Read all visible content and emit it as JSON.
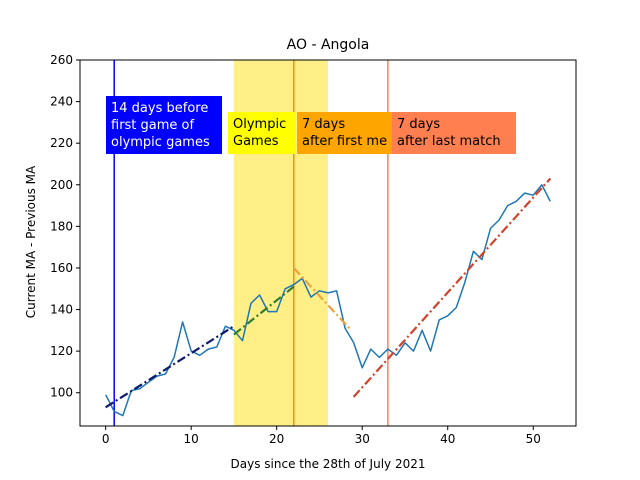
{
  "chart_data": {
    "type": "line",
    "title": "AO - Angola",
    "xlabel": "Days since the 28th of July 2021",
    "ylabel": "Current MA - Previous MA",
    "xlim": [
      -3,
      55
    ],
    "ylim": [
      84,
      260
    ],
    "xticks": [
      0,
      10,
      20,
      30,
      40,
      50
    ],
    "yticks": [
      100,
      120,
      140,
      160,
      180,
      200,
      220,
      240,
      260
    ],
    "grid": false,
    "series": [
      {
        "color": "#1f77b4",
        "x": [
          0,
          1,
          2,
          3,
          4,
          5,
          6,
          7,
          8,
          9,
          10,
          11,
          12,
          13,
          14,
          15,
          16,
          17,
          18,
          19,
          20,
          21,
          22,
          23,
          24,
          25,
          26,
          27,
          28,
          29,
          30,
          31,
          32,
          33,
          34,
          35,
          36,
          37,
          38,
          39,
          40,
          41,
          42,
          43,
          44,
          45,
          46,
          47,
          48,
          49,
          50,
          51,
          52
        ],
        "y": [
          99,
          91,
          89,
          101,
          102,
          105,
          108,
          109,
          117,
          134,
          120,
          118,
          121,
          122,
          132,
          130,
          125,
          143,
          147,
          139,
          139,
          150,
          152,
          155,
          146,
          149,
          148,
          149,
          131,
          124,
          112,
          121,
          117,
          121,
          118,
          124,
          120,
          130,
          120,
          135,
          137,
          141,
          153,
          168,
          164,
          179,
          183,
          190,
          192,
          196,
          195,
          200,
          192
        ]
      }
    ],
    "trend_lines": [
      {
        "color": "#0d1b6b",
        "x": [
          0,
          15
        ],
        "y": [
          93,
          132
        ]
      },
      {
        "color": "#2e7d32",
        "x": [
          15,
          22
        ],
        "y": [
          128,
          151
        ]
      },
      {
        "color": "#e8a33d",
        "x": [
          22,
          28.5
        ],
        "y": [
          160,
          131
        ]
      },
      {
        "color": "#d2422a",
        "x": [
          29,
          52
        ],
        "y": [
          98,
          203
        ]
      }
    ],
    "shaded_region": {
      "x": [
        15,
        26
      ],
      "color": "#ffee80"
    },
    "vlines": [
      {
        "x": 1,
        "color": "#0000ff"
      },
      {
        "x": 22,
        "color": "#ff8c00"
      },
      {
        "x": 33,
        "color": "#ff7f50"
      }
    ],
    "annotations": [
      {
        "lines": [
          "14 days before",
          "first game of",
          "olympic games"
        ],
        "bg": "#0000ff",
        "fg": "#ffffff"
      },
      {
        "lines": [
          "Olympic",
          "Games"
        ],
        "bg": "#ffff00",
        "fg": "#000000"
      },
      {
        "lines": [
          "7 days",
          "after first me"
        ],
        "bg": "#ffa500",
        "fg": "#000000"
      },
      {
        "lines": [
          "7 days",
          "after last match"
        ],
        "bg": "#ff7f50",
        "fg": "#000000"
      }
    ]
  }
}
